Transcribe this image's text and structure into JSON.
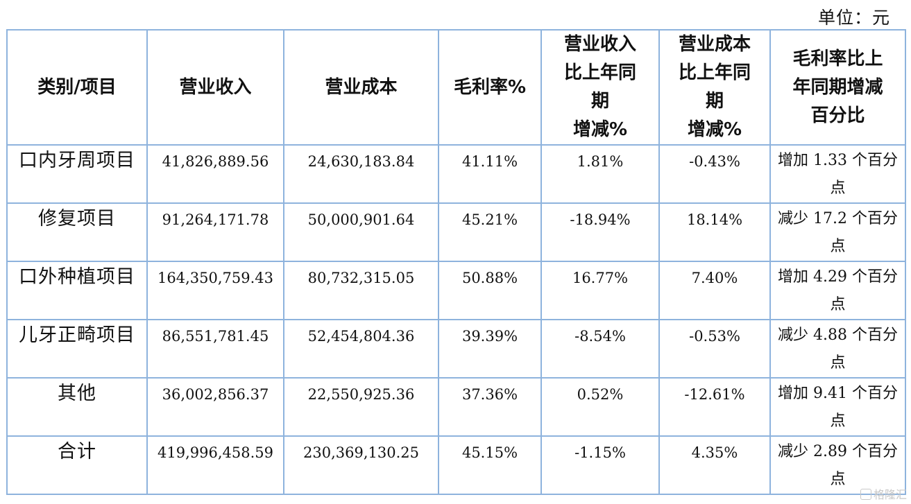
{
  "unit_label": "单位：元",
  "headers": {
    "category": "类别/项目",
    "revenue": "营业收入",
    "cost": "营业成本",
    "margin": "毛利率%",
    "revenue_change": [
      "营业收入",
      "比上年同",
      "期",
      "增减%"
    ],
    "cost_change": [
      "营业成本",
      "比上年同",
      "期",
      "增减%"
    ],
    "margin_change": [
      "毛利率比上",
      "年同期增减",
      "百分比"
    ]
  },
  "rows": [
    {
      "category": "口内牙周项目",
      "revenue": "41,826,889.56",
      "cost": "24,630,183.84",
      "margin": "41.11%",
      "revenue_change": "1.81%",
      "cost_change": "-0.43%",
      "margin_change": "增加 1.33 个百分点"
    },
    {
      "category": "修复项目",
      "revenue": "91,264,171.78",
      "cost": "50,000,901.64",
      "margin": "45.21%",
      "revenue_change": "-18.94%",
      "cost_change": "18.14%",
      "margin_change": "减少 17.2 个百分点"
    },
    {
      "category": "口外种植项目",
      "revenue": "164,350,759.43",
      "cost": "80,732,315.05",
      "margin": "50.88%",
      "revenue_change": "16.77%",
      "cost_change": "7.40%",
      "margin_change": "增加 4.29 个百分点"
    },
    {
      "category": "儿牙正畸项目",
      "revenue": "86,551,781.45",
      "cost": "52,454,804.36",
      "margin": "39.39%",
      "revenue_change": "-8.54%",
      "cost_change": "-0.53%",
      "margin_change": "减少 4.88 个百分点"
    },
    {
      "category": "其他",
      "revenue": "36,002,856.37",
      "cost": "22,550,925.36",
      "margin": "37.36%",
      "revenue_change": "0.52%",
      "cost_change": "-12.61%",
      "margin_change": "增加 9.41 个百分点"
    },
    {
      "category": "合计",
      "revenue": "419,996,458.59",
      "cost": "230,369,130.25",
      "margin": "45.15%",
      "revenue_change": "-1.15%",
      "cost_change": "4.35%",
      "margin_change": "减少 2.89 个百分点"
    }
  ],
  "watermark": "格隆汇"
}
